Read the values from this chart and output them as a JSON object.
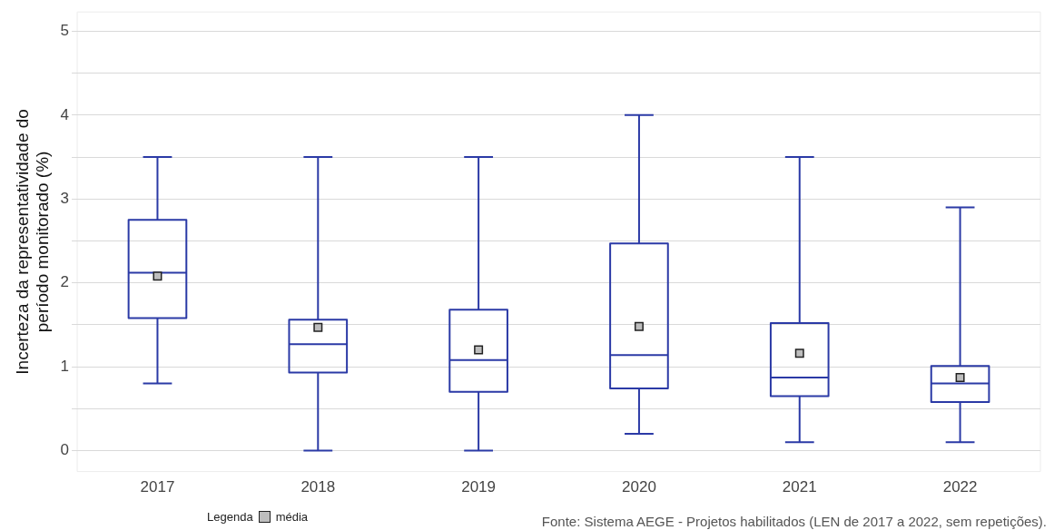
{
  "chart_data": {
    "type": "box",
    "ylabel": "Incerteza da representatividade do\nperíodo monitorado (%)",
    "categories": [
      "2017",
      "2018",
      "2019",
      "2020",
      "2021",
      "2022"
    ],
    "series": [
      {
        "color": "#2b3aa6",
        "boxes": [
          {
            "low": 0.8,
            "q1": 1.58,
            "median": 2.12,
            "q3": 2.75,
            "high": 3.5
          },
          {
            "low": 0,
            "q1": 0.93,
            "median": 1.27,
            "q3": 1.56,
            "high": 3.5
          },
          {
            "low": 0,
            "q1": 0.7,
            "median": 1.08,
            "q3": 1.68,
            "high": 3.5
          },
          {
            "low": 0.2,
            "q1": 0.74,
            "median": 1.14,
            "q3": 2.47,
            "high": 4.0
          },
          {
            "low": 0.1,
            "q1": 0.65,
            "median": 0.87,
            "q3": 1.52,
            "high": 3.5
          },
          {
            "low": 0.1,
            "q1": 0.58,
            "median": 0.8,
            "q3": 1.01,
            "high": 2.9
          }
        ]
      },
      {
        "type": "scatter",
        "name": "média",
        "color": "#bebebe",
        "values": [
          2.08,
          1.47,
          1.2,
          1.48,
          1.16,
          0.87
        ]
      }
    ],
    "marker": "square",
    "legend_title": "Legenda",
    "legend": "bottom left",
    "ylim": [
      -0.25,
      5.23
    ],
    "yticks": [
      0,
      {
        "value": 0.5,
        "label": null
      },
      1,
      {
        "value": 1.5,
        "label": null
      },
      2,
      {
        "value": 2.5,
        "label": null
      },
      3,
      {
        "value": 3.5,
        "label": null
      },
      4,
      {
        "value": 4.5,
        "label": null
      },
      5
    ],
    "grid": "y",
    "annotations": [
      "Fonte: Sistema AEGE - Projetos habilitados (LEN de 2017 a 2022, sem repetições)."
    ]
  }
}
